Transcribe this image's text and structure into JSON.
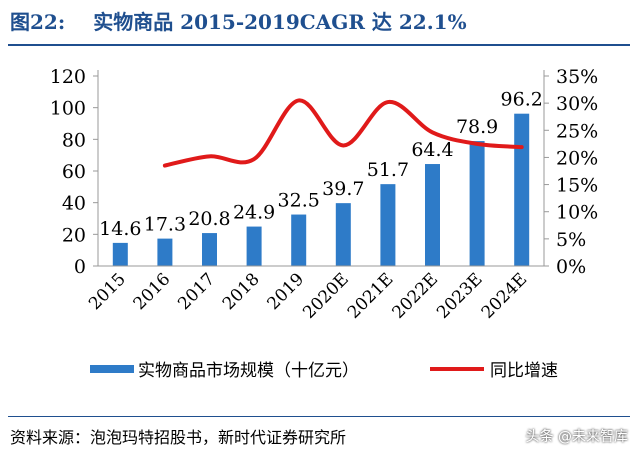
{
  "header": {
    "figure_number": "图22:",
    "title_text": "实物商品 2015-2019CAGR 达 22.1%"
  },
  "footer": {
    "source": "资料来源：泡泡玛特招股书，新时代证券研究所",
    "watermark": "头条 @未来智库"
  },
  "colors": {
    "bar": "#2e7bc8",
    "line": "#e01a1a",
    "title": "#1f4f8f"
  },
  "chart_data": {
    "type": "bar",
    "categories": [
      "2015",
      "2016",
      "2017",
      "2018",
      "2019",
      "2020E",
      "2021E",
      "2022E",
      "2023E",
      "2024E"
    ],
    "series": [
      {
        "name": "实物商品市场规模（十亿元）",
        "type": "bar",
        "axis": "left",
        "values": [
          14.6,
          17.3,
          20.8,
          24.9,
          32.5,
          39.7,
          51.7,
          64.4,
          78.9,
          96.2
        ],
        "labels": [
          "14.6",
          "17.3",
          "20.8",
          "24.9",
          "32.5",
          "39.7",
          "51.7",
          "64.4",
          "78.9",
          "96.2"
        ]
      },
      {
        "name": "同比增速",
        "type": "line",
        "axis": "right",
        "values": [
          null,
          18.5,
          20.2,
          19.7,
          30.5,
          22.2,
          30.2,
          24.6,
          22.5,
          21.9
        ]
      }
    ],
    "y_left": {
      "min": 0,
      "max": 120,
      "ticks": [
        "0",
        "20",
        "40",
        "60",
        "80",
        "100",
        "120"
      ]
    },
    "y_right": {
      "min": 0,
      "max": 35,
      "ticks": [
        "0%",
        "5%",
        "10%",
        "15%",
        "20%",
        "25%",
        "30%",
        "35%"
      ]
    },
    "legend_position": "bottom",
    "grid": false
  }
}
